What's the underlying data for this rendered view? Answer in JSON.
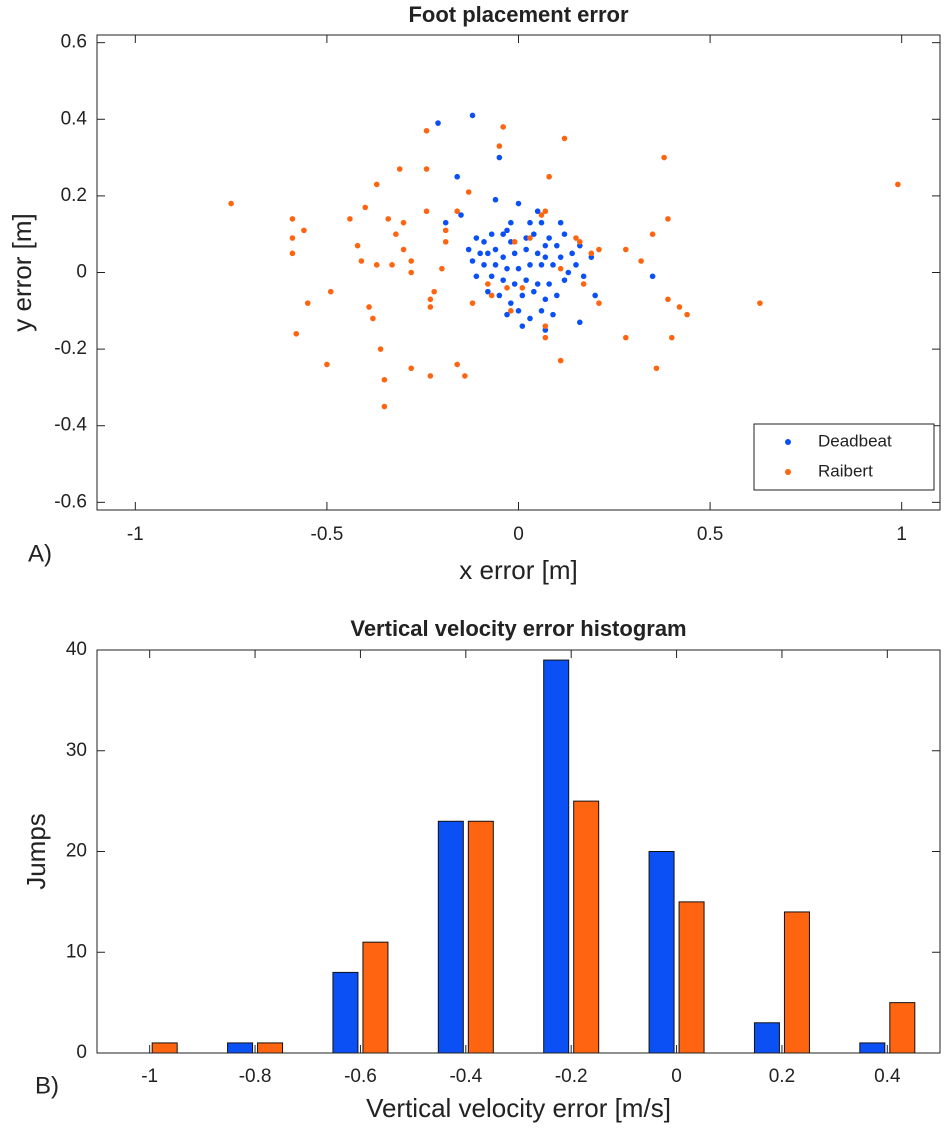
{
  "chart_data": [
    {
      "type": "scatter",
      "title": "Foot placement error",
      "x_label": "x error [m]",
      "y_label": "y error [m]",
      "panel_label": "A)",
      "xlim": [
        -1.1,
        1.1
      ],
      "ylim": [
        -0.62,
        0.62
      ],
      "xticks": [
        -1,
        -0.5,
        0,
        0.5,
        1
      ],
      "yticks": [
        -0.6,
        -0.4,
        -0.2,
        0,
        0.2,
        0.4,
        0.6
      ],
      "legend": "lower right",
      "series": [
        {
          "name": "Deadbeat",
          "color": "#0a50f5",
          "x": [
            -0.12,
            -0.21,
            -0.05,
            -0.16,
            -0.06,
            0.0,
            -0.15,
            -0.19,
            0.05,
            0.06,
            0.11,
            0.12,
            0.16,
            0.2,
            0.35,
            0.16,
            -0.11,
            -0.09,
            -0.07,
            -0.04,
            -0.03,
            -0.02,
            0.02,
            0.04,
            0.08,
            0.1,
            -0.1,
            -0.08,
            -0.06,
            -0.04,
            -0.01,
            0.02,
            0.05,
            0.07,
            0.11,
            0.14,
            -0.12,
            -0.09,
            -0.06,
            -0.03,
            0.0,
            0.03,
            0.06,
            0.09,
            0.13,
            0.17,
            -0.11,
            -0.07,
            -0.04,
            -0.01,
            0.02,
            0.05,
            0.08,
            0.12,
            -0.08,
            -0.05,
            -0.02,
            0.01,
            0.04,
            0.07,
            0.1,
            -0.03,
            0.0,
            0.03,
            0.06,
            0.09,
            0.01,
            0.07,
            0.15,
            0.19,
            -0.13,
            0.03,
            0.07,
            -0.02
          ],
          "values": [
            0.41,
            0.39,
            0.3,
            0.25,
            0.19,
            0.18,
            0.15,
            0.13,
            0.16,
            0.13,
            0.13,
            0.1,
            0.07,
            -0.06,
            -0.01,
            -0.13,
            0.09,
            0.08,
            0.1,
            0.1,
            0.11,
            0.08,
            0.09,
            0.1,
            0.09,
            0.07,
            0.05,
            0.05,
            0.06,
            0.04,
            0.05,
            0.06,
            0.05,
            0.04,
            0.04,
            0.05,
            0.03,
            0.02,
            0.02,
            0.01,
            0.01,
            0.02,
            0.02,
            0.02,
            0.0,
            -0.01,
            -0.01,
            -0.01,
            -0.02,
            -0.03,
            -0.02,
            -0.03,
            -0.03,
            -0.02,
            -0.05,
            -0.06,
            -0.08,
            -0.06,
            -0.05,
            -0.07,
            -0.06,
            -0.11,
            -0.1,
            -0.12,
            -0.1,
            -0.11,
            -0.14,
            -0.15,
            0.02,
            0.04,
            0.06,
            0.13,
            0.07,
            0.13
          ]
        },
        {
          "name": "Raibert",
          "color": "#ff6410",
          "x": [
            -0.75,
            -0.59,
            -0.59,
            -0.59,
            -0.56,
            -0.55,
            -0.58,
            -0.49,
            -0.5,
            -0.44,
            -0.42,
            -0.41,
            -0.4,
            -0.37,
            -0.34,
            -0.37,
            -0.39,
            -0.38,
            -0.36,
            -0.35,
            -0.35,
            -0.33,
            -0.32,
            -0.31,
            -0.3,
            -0.28,
            -0.28,
            -0.28,
            -0.3,
            -0.24,
            -0.24,
            -0.24,
            -0.23,
            -0.23,
            -0.23,
            -0.22,
            -0.2,
            -0.19,
            -0.19,
            -0.16,
            -0.14,
            -0.13,
            -0.12,
            -0.16,
            -0.08,
            -0.07,
            -0.04,
            -0.05,
            -0.02,
            -0.03,
            -0.01,
            0.01,
            0.03,
            0.06,
            0.07,
            0.07,
            0.08,
            0.11,
            0.12,
            0.15,
            0.16,
            0.19,
            0.21,
            0.17,
            0.21,
            0.28,
            0.28,
            0.32,
            0.38,
            0.39,
            0.39,
            0.4,
            0.42,
            0.44,
            0.36,
            0.35,
            0.63,
            0.99,
            0.11,
            0.07
          ],
          "values": [
            0.18,
            0.14,
            0.09,
            0.05,
            0.11,
            -0.08,
            -0.16,
            -0.05,
            -0.24,
            0.14,
            0.07,
            0.03,
            0.17,
            0.23,
            0.14,
            0.02,
            -0.09,
            -0.12,
            -0.2,
            -0.28,
            -0.35,
            0.02,
            0.1,
            0.27,
            0.06,
            0.0,
            0.03,
            -0.25,
            0.13,
            0.37,
            0.27,
            0.16,
            -0.09,
            -0.07,
            -0.27,
            -0.05,
            0.01,
            0.11,
            0.08,
            -0.24,
            -0.27,
            0.21,
            -0.08,
            0.16,
            -0.03,
            -0.06,
            0.38,
            0.33,
            -0.1,
            -0.04,
            0.08,
            -0.04,
            0.09,
            0.15,
            0.16,
            -0.17,
            0.25,
            -0.23,
            0.35,
            0.09,
            0.08,
            0.05,
            0.06,
            -0.03,
            -0.08,
            -0.17,
            0.06,
            0.03,
            0.3,
            0.14,
            -0.07,
            -0.17,
            -0.09,
            -0.11,
            -0.25,
            0.1,
            -0.08,
            0.23,
            0.01,
            -0.14
          ]
        }
      ]
    },
    {
      "type": "bar",
      "title": "Vertical velocity error histogram",
      "x_label": "Vertical velocity error [m/s]",
      "y_label": "Jumps",
      "panel_label": "B)",
      "categories": [
        "-1",
        "-0.8",
        "-0.6",
        "-0.4",
        "-0.2",
        "0",
        "0.2",
        "0.4"
      ],
      "ylim": [
        0,
        40
      ],
      "yticks": [
        0,
        10,
        20,
        30,
        40
      ],
      "series": [
        {
          "name": "Deadbeat",
          "color": "#0a50f5",
          "values": [
            0,
            1,
            8,
            23,
            39,
            20,
            3,
            1
          ]
        },
        {
          "name": "Raibert",
          "color": "#ff6410",
          "values": [
            1,
            1,
            11,
            23,
            25,
            15,
            14,
            5
          ]
        }
      ]
    }
  ]
}
